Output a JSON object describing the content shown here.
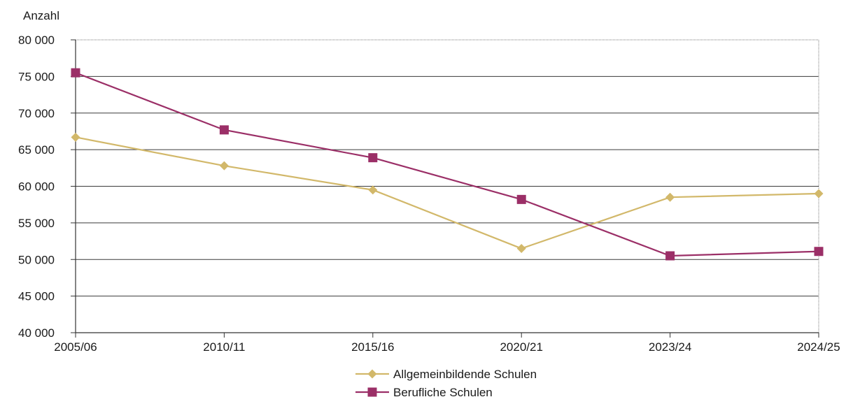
{
  "chart_data": {
    "type": "line",
    "ylabel": "Anzahl",
    "categories": [
      "2005/06",
      "2010/11",
      "2015/16",
      "2020/21",
      "2023/24",
      "2024/25"
    ],
    "ylim": [
      40000,
      80000
    ],
    "yticks": [
      40000,
      45000,
      50000,
      55000,
      60000,
      65000,
      70000,
      75000,
      80000
    ],
    "ytick_labels": [
      "40 000",
      "45 000",
      "50 000",
      "55 000",
      "60 000",
      "65 000",
      "70 000",
      "75 000",
      "80 000"
    ],
    "grid": true,
    "legend_position": "bottom-center",
    "series": [
      {
        "name": "Allgemeinbildende Schulen",
        "values": [
          66700,
          62800,
          59500,
          51500,
          58500,
          59000
        ],
        "color": "#d2b86a",
        "marker": "diamond"
      },
      {
        "name": "Berufliche Schulen",
        "values": [
          75500,
          67700,
          63900,
          58200,
          50500,
          51100
        ],
        "color": "#9b2f67",
        "marker": "square"
      }
    ]
  }
}
